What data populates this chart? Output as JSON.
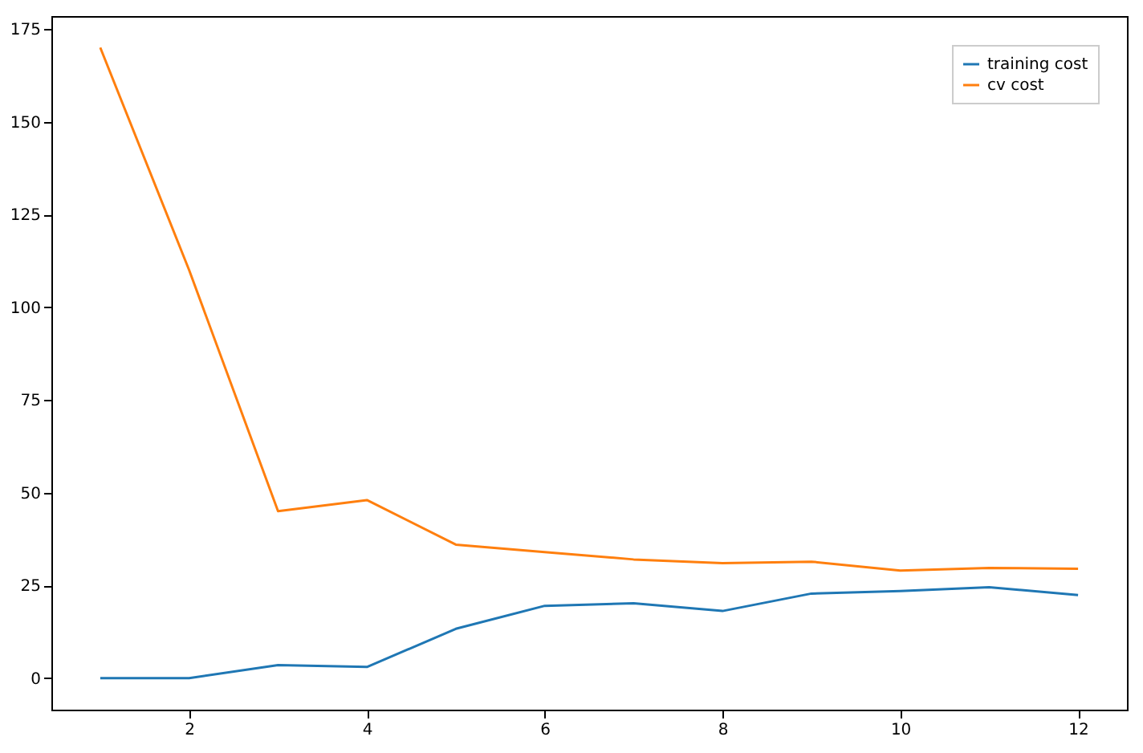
{
  "chart_data": {
    "type": "line",
    "x": [
      1,
      2,
      3,
      4,
      5,
      6,
      7,
      8,
      9,
      10,
      11,
      12
    ],
    "series": [
      {
        "name": "training cost",
        "color": "#1f77b4",
        "values": [
          0,
          0,
          3.5,
          3,
          13.3,
          19.5,
          20.2,
          18.1,
          22.8,
          23.5,
          24.5,
          22.4
        ]
      },
      {
        "name": "cv cost",
        "color": "#ff7f0e",
        "values": [
          170,
          110,
          45,
          48,
          36,
          34,
          32,
          31,
          31.4,
          29,
          29.7,
          29.5
        ]
      }
    ],
    "xlim": [
      0.45,
      12.55
    ],
    "ylim": [
      -8.5,
      178.5
    ],
    "xticks": [
      2,
      4,
      6,
      8,
      10,
      12
    ],
    "yticks": [
      0,
      25,
      50,
      75,
      100,
      125,
      150,
      175
    ],
    "grid": false,
    "legend": "top right",
    "marker": "none",
    "line_style": "solid"
  }
}
